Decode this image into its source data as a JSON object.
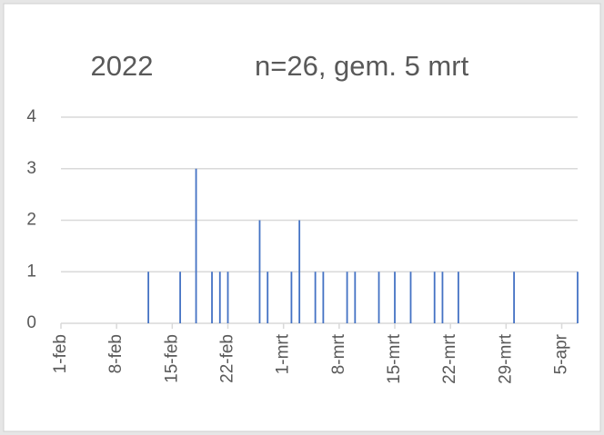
{
  "chart_data": {
    "type": "bar",
    "title": "2022",
    "subtitle": "n=26, gem. 5 mrt",
    "color": "#4472c4",
    "grid": true,
    "x": [
      "02-12",
      "02-16",
      "02-18",
      "02-20",
      "02-21",
      "02-22",
      "02-26",
      "02-27",
      "03-02",
      "03-03",
      "03-05",
      "03-06",
      "03-09",
      "03-10",
      "03-13",
      "03-15",
      "03-17",
      "03-20",
      "03-21",
      "03-23",
      "03-30",
      "04-07"
    ],
    "values": [
      1,
      1,
      3,
      1,
      1,
      1,
      2,
      1,
      1,
      2,
      1,
      1,
      1,
      1,
      1,
      1,
      1,
      1,
      1,
      1,
      1,
      1
    ],
    "xlim": [
      "02-01",
      "04-07"
    ],
    "xticks": [
      {
        "value": "02-01",
        "label": "1-feb"
      },
      {
        "value": "02-08",
        "label": "8-feb"
      },
      {
        "value": "02-15",
        "label": "15-feb"
      },
      {
        "value": "02-22",
        "label": "22-feb"
      },
      {
        "value": "03-01",
        "label": "1-mrt"
      },
      {
        "value": "03-08",
        "label": "8-mrt"
      },
      {
        "value": "03-15",
        "label": "15-mrt"
      },
      {
        "value": "03-22",
        "label": "22-mrt"
      },
      {
        "value": "03-29",
        "label": "29-mrt"
      },
      {
        "value": "04-05",
        "label": "5-apr"
      }
    ],
    "ylim": [
      0,
      4
    ],
    "yticks": [
      0,
      1,
      2,
      3,
      4
    ]
  }
}
